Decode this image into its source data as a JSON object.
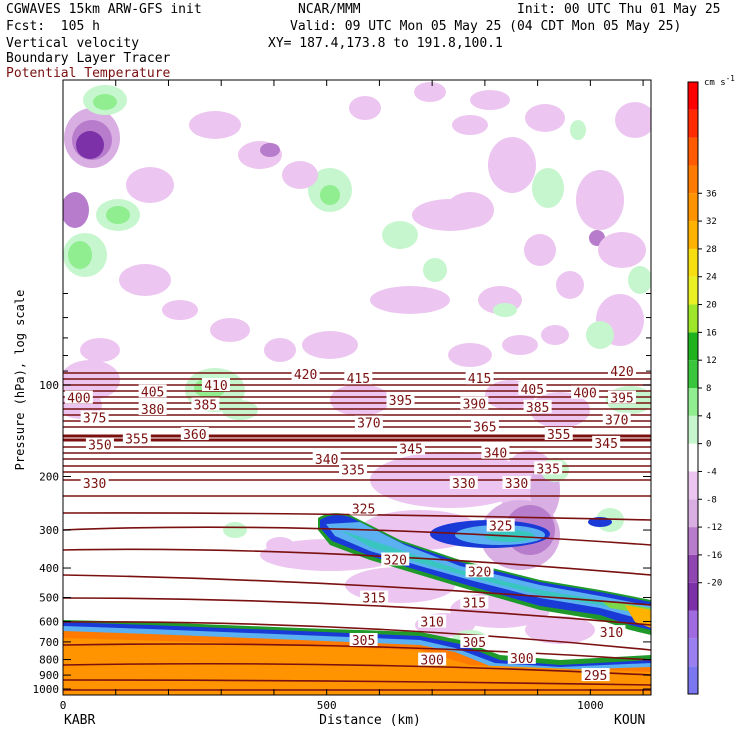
{
  "header": {
    "model": "CGWAVES 15km ARW-GFS init",
    "fcst": "Fcst:  105 h",
    "field1": "Vertical velocity",
    "field2": "Boundary Layer Tracer",
    "field3": "Potential Temperature",
    "org": "NCAR/MMM",
    "init": "Init: 00 UTC Thu 01 May 25",
    "valid": "Valid: 09 UTC Mon 05 May 25 (04 CDT Mon 05 May 25)",
    "xy": "XY= 187.4,173.8 to 191.8,100.1"
  },
  "chart_data": {
    "type": "heatmap",
    "xlabel": "Distance (km)",
    "ylabel": "Pressure (hPa), log scale",
    "y_scale": "log",
    "x_ticks": [
      0,
      500,
      1000
    ],
    "x_start_label": "KABR",
    "x_end_label": "KOUN",
    "y_ticks": [
      100,
      200,
      300,
      400,
      500,
      600,
      700,
      800,
      900,
      1000
    ],
    "colorbar_unit": "cm s",
    "colorbar_unit_exp": "-1",
    "colorbar_ticks": [
      36,
      32,
      28,
      24,
      20,
      16,
      12,
      8,
      4,
      0,
      -4,
      -8,
      -12,
      -16,
      -20
    ],
    "colorbar_colors": [
      "#7b77f0",
      "#9a7ff0",
      "#a16be0",
      "#7c31a8",
      "#9046b0",
      "#b77ccc",
      "#d8aee3",
      "#ecc6f0",
      "#ffffff",
      "#c6f6cd",
      "#90ee90",
      "#39c63d",
      "#1eb31e",
      "#9ee629",
      "#e9f023",
      "#f7de10",
      "#ffb200",
      "#ff9300",
      "#ff7a00",
      "#ff5a00",
      "#ff2a00",
      "#ff0000"
    ],
    "theta_contour_labels": [
      {
        "text": "420",
        "x": 460,
        "p": 92
      },
      {
        "text": "415",
        "x": 560,
        "p": 95
      },
      {
        "text": "410",
        "x": 290,
        "p": 100
      },
      {
        "text": "405",
        "x": 170,
        "p": 105
      },
      {
        "text": "400",
        "x": 30,
        "p": 110
      },
      {
        "text": "375",
        "x": 60,
        "p": 128
      },
      {
        "text": "380",
        "x": 170,
        "p": 120
      },
      {
        "text": "385",
        "x": 270,
        "p": 116
      },
      {
        "text": "395",
        "x": 640,
        "p": 112
      },
      {
        "text": "390",
        "x": 780,
        "p": 115
      },
      {
        "text": "415",
        "x": 790,
        "p": 95
      },
      {
        "text": "405",
        "x": 890,
        "p": 103
      },
      {
        "text": "385",
        "x": 900,
        "p": 118
      },
      {
        "text": "400",
        "x": 990,
        "p": 106
      },
      {
        "text": "420",
        "x": 1060,
        "p": 90
      },
      {
        "text": "395",
        "x": 1060,
        "p": 110
      },
      {
        "text": "370",
        "x": 1050,
        "p": 130
      },
      {
        "text": "370",
        "x": 580,
        "p": 133
      },
      {
        "text": "360",
        "x": 250,
        "p": 145
      },
      {
        "text": "355",
        "x": 140,
        "p": 150
      },
      {
        "text": "350",
        "x": 70,
        "p": 157
      },
      {
        "text": "365",
        "x": 800,
        "p": 137
      },
      {
        "text": "355",
        "x": 940,
        "p": 145
      },
      {
        "text": "345",
        "x": 1030,
        "p": 155
      },
      {
        "text": "345",
        "x": 660,
        "p": 162
      },
      {
        "text": "340",
        "x": 820,
        "p": 167
      },
      {
        "text": "340",
        "x": 500,
        "p": 175
      },
      {
        "text": "335",
        "x": 550,
        "p": 190
      },
      {
        "text": "335",
        "x": 920,
        "p": 188
      },
      {
        "text": "330",
        "x": 60,
        "p": 210
      },
      {
        "text": "330",
        "x": 760,
        "p": 210
      },
      {
        "text": "330",
        "x": 860,
        "p": 210
      },
      {
        "text": "325",
        "x": 570,
        "p": 255
      },
      {
        "text": "325",
        "x": 830,
        "p": 290
      },
      {
        "text": "320",
        "x": 630,
        "p": 375
      },
      {
        "text": "320",
        "x": 790,
        "p": 410
      },
      {
        "text": "315",
        "x": 590,
        "p": 500
      },
      {
        "text": "315",
        "x": 780,
        "p": 520
      },
      {
        "text": "310",
        "x": 700,
        "p": 600
      },
      {
        "text": "310",
        "x": 1040,
        "p": 650
      },
      {
        "text": "305",
        "x": 570,
        "p": 690
      },
      {
        "text": "305",
        "x": 780,
        "p": 700
      },
      {
        "text": "300",
        "x": 700,
        "p": 800
      },
      {
        "text": "300",
        "x": 870,
        "p": 790
      },
      {
        "text": "295",
        "x": 1010,
        "p": 900
      }
    ]
  }
}
